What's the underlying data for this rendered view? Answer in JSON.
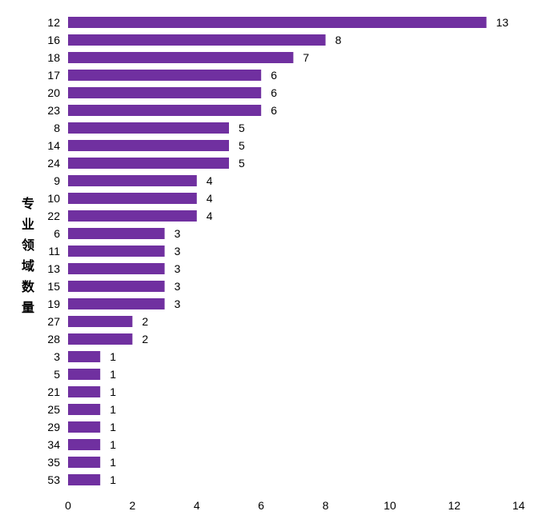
{
  "chart_data": {
    "type": "bar",
    "orientation": "horizontal",
    "categories": [
      "12",
      "16",
      "18",
      "17",
      "20",
      "23",
      "8",
      "14",
      "24",
      "9",
      "10",
      "22",
      "6",
      "11",
      "13",
      "15",
      "19",
      "27",
      "28",
      "3",
      "5",
      "21",
      "25",
      "29",
      "34",
      "35",
      "53"
    ],
    "values": [
      13,
      8,
      7,
      6,
      6,
      6,
      5,
      5,
      5,
      4,
      4,
      4,
      3,
      3,
      3,
      3,
      3,
      2,
      2,
      1,
      1,
      1,
      1,
      1,
      1,
      1,
      1
    ],
    "ylabel": "专业领域数量",
    "xlabel": "",
    "title": "",
    "xlim": [
      0,
      14
    ],
    "xticks": [
      0,
      2,
      4,
      6,
      8,
      10,
      12,
      14
    ],
    "grid": false,
    "bar_color": "#7030a0",
    "data_labels": true
  }
}
